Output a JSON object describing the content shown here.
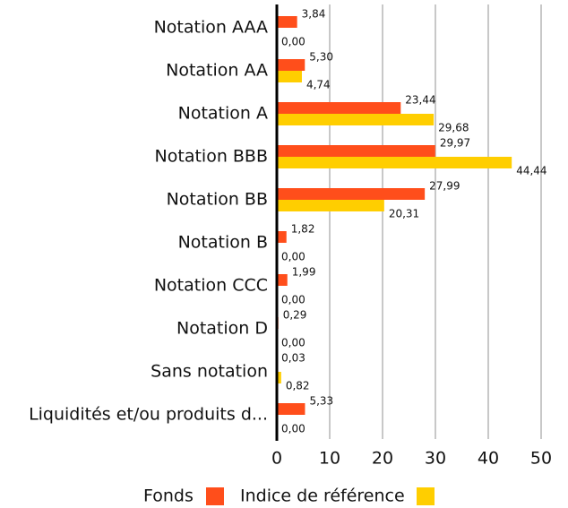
{
  "chart_data": {
    "type": "bar",
    "orientation": "horizontal",
    "categories": [
      "Notation AAA",
      "Notation AA",
      "Notation A",
      "Notation BBB",
      "Notation BB",
      "Notation B",
      "Notation CCC",
      "Notation D",
      "Sans notation",
      "Liquidités et/ou produits d..."
    ],
    "series": [
      {
        "name": "Fonds",
        "color": "#FF4E1B",
        "values": [
          3.84,
          5.3,
          23.44,
          29.97,
          27.99,
          1.82,
          1.99,
          0.29,
          0.03,
          5.33
        ],
        "labels": [
          "3,84",
          "5,30",
          "23,44",
          "29,97",
          "27,99",
          "1,82",
          "1,99",
          "0,29",
          "0,03",
          "5,33"
        ]
      },
      {
        "name": "Indice de référence",
        "color": "#FFCE00",
        "values": [
          0.0,
          4.74,
          29.68,
          44.44,
          20.31,
          0.0,
          0.0,
          0.0,
          0.82,
          0.0
        ],
        "labels": [
          "0,00",
          "4,74",
          "29,68",
          "44,44",
          "20,31",
          "0,00",
          "0,00",
          "0,00",
          "0,82",
          "0,00"
        ]
      }
    ],
    "xlim": [
      0,
      50
    ],
    "xticks": [
      "0",
      "10",
      "20",
      "30",
      "40",
      "50"
    ],
    "grid": true,
    "legend": "bottom"
  }
}
